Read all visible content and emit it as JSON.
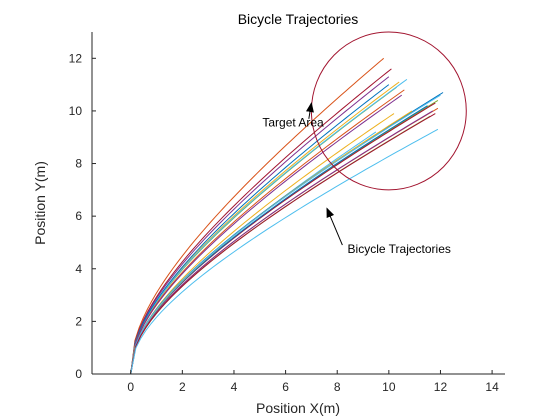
{
  "chart_data": {
    "type": "line",
    "title": "Bicycle Trajectories",
    "xlabel": "Position X(m)",
    "ylabel": "Position Y(m)",
    "xlim": [
      -1.5,
      14.5
    ],
    "ylim": [
      0,
      13
    ],
    "xticks": [
      0,
      2,
      4,
      6,
      8,
      10,
      12,
      14
    ],
    "yticks": [
      0,
      2,
      4,
      6,
      8,
      10,
      12
    ],
    "grid": false,
    "target_circle": {
      "center": [
        10.0,
        10.0
      ],
      "radius": 3.0,
      "color": "#a2142f"
    },
    "annotations": [
      {
        "text": "Target Area",
        "text_at": [
          5.1,
          9.4
        ],
        "arrow_from": [
          6.9,
          9.7
        ],
        "arrow_to": [
          7.0,
          10.3
        ]
      },
      {
        "text": "Bicycle Trajectories",
        "text_at": [
          8.4,
          4.6
        ],
        "arrow_from": [
          8.2,
          4.9
        ],
        "arrow_to": [
          7.6,
          6.3
        ]
      }
    ],
    "series": [
      {
        "color": "#d95319",
        "end": [
          9.8,
          12.0
        ]
      },
      {
        "color": "#a2142f",
        "end": [
          10.1,
          11.6
        ]
      },
      {
        "color": "#7e2f8e",
        "end": [
          10.0,
          11.3
        ]
      },
      {
        "color": "#edb120",
        "end": [
          10.4,
          11.1
        ]
      },
      {
        "color": "#77ac30",
        "end": [
          10.3,
          10.9
        ]
      },
      {
        "color": "#4dbeee",
        "end": [
          10.7,
          11.2
        ]
      },
      {
        "color": "#0072bd",
        "end": [
          10.0,
          11.0
        ]
      },
      {
        "color": "#d95319",
        "end": [
          10.6,
          10.8
        ]
      },
      {
        "color": "#7e2f8e",
        "end": [
          10.5,
          10.6
        ]
      },
      {
        "color": "#4dbeee",
        "end": [
          9.5,
          9.2
        ]
      },
      {
        "color": "#edb120",
        "end": [
          10.2,
          9.9
        ]
      },
      {
        "color": "#77ac30",
        "end": [
          11.9,
          10.4
        ]
      },
      {
        "color": "#0072bd",
        "end": [
          12.1,
          10.7
        ]
      },
      {
        "color": "#a2142f",
        "end": [
          11.8,
          10.3
        ]
      },
      {
        "color": "#d95319",
        "end": [
          11.9,
          10.1
        ]
      },
      {
        "color": "#0072bd",
        "end": [
          11.5,
          10.2
        ]
      },
      {
        "color": "#edb120",
        "end": [
          10.9,
          10.0
        ]
      },
      {
        "color": "#77ac30",
        "end": [
          11.6,
          9.8
        ]
      },
      {
        "color": "#4dbeee",
        "end": [
          12.0,
          10.6
        ]
      },
      {
        "color": "#7e2f8e",
        "end": [
          11.7,
          10.0
        ]
      },
      {
        "color": "#a2142f",
        "end": [
          11.8,
          9.9
        ]
      },
      {
        "color": "#4dbeee",
        "end": [
          11.9,
          9.3
        ]
      }
    ]
  }
}
